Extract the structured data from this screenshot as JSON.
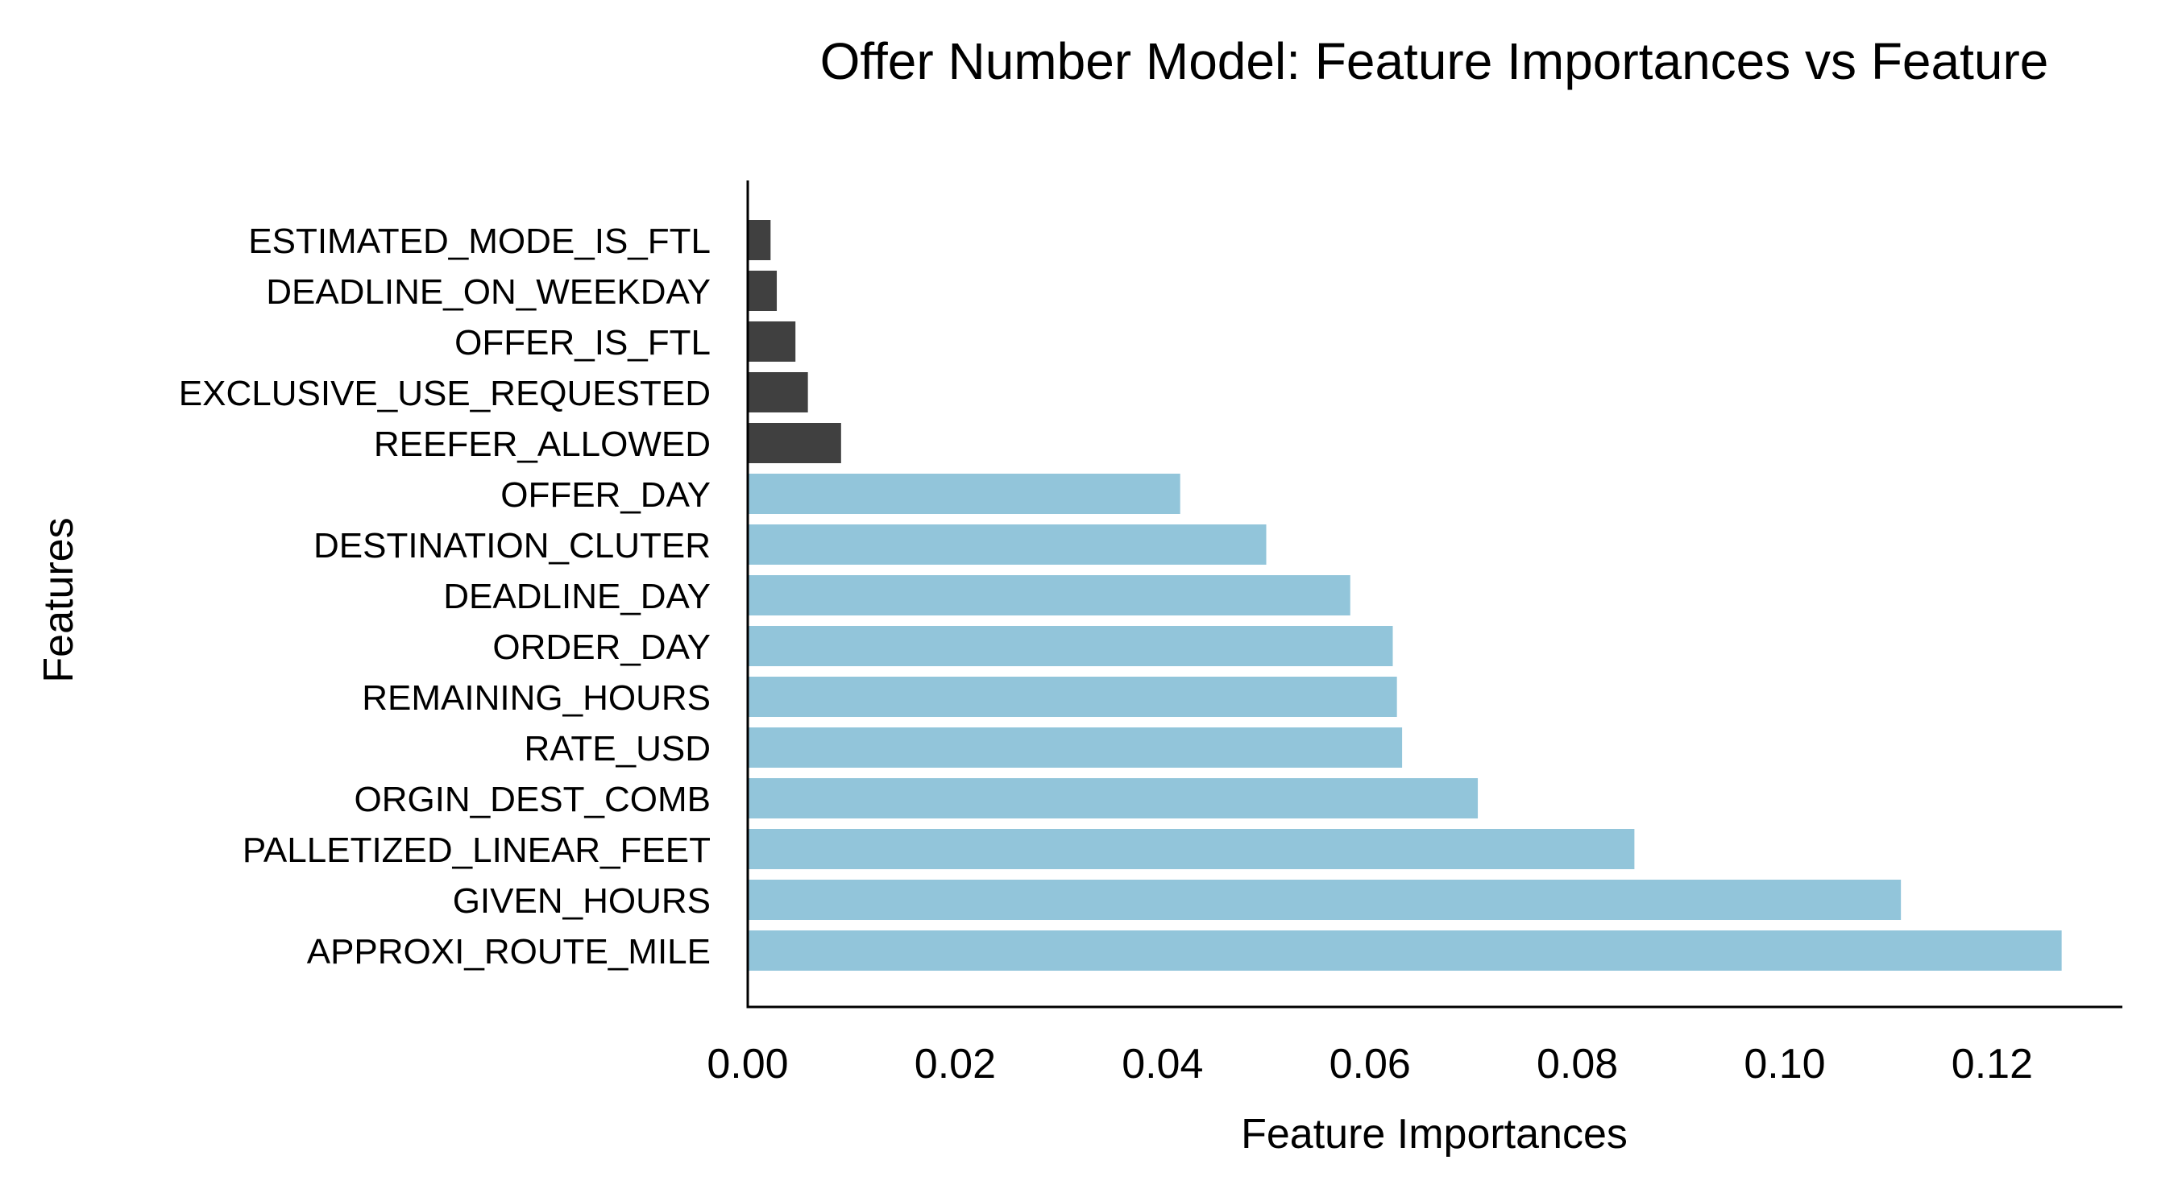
{
  "chart_data": {
    "type": "bar",
    "orientation": "horizontal",
    "title": "Offer Number Model: Feature Importances vs Feature",
    "xlabel": "Feature Importances",
    "ylabel": "Features",
    "xlim": [
      0,
      0.133
    ],
    "xticks": [
      "0.00",
      "0.02",
      "0.04",
      "0.06",
      "0.08",
      "0.10",
      "0.12"
    ],
    "xtick_values": [
      0,
      0.02,
      0.04,
      0.06,
      0.08,
      0.1,
      0.12
    ],
    "grid": false,
    "bars": [
      {
        "label": "ESTIMATED_MODE_IS_FTL",
        "value": 0.0022,
        "color": "#404040"
      },
      {
        "label": "DEADLINE_ON_WEEKDAY",
        "value": 0.0028,
        "color": "#404040"
      },
      {
        "label": "OFFER_IS_FTL",
        "value": 0.0046,
        "color": "#404040"
      },
      {
        "label": "EXCLUSIVE_USE_REQUESTED",
        "value": 0.0058,
        "color": "#404040"
      },
      {
        "label": "REEFER_ALLOWED",
        "value": 0.009,
        "color": "#404040"
      },
      {
        "label": "OFFER_DAY",
        "value": 0.0417,
        "color": "#92c5da"
      },
      {
        "label": "DESTINATION_CLUTER",
        "value": 0.05,
        "color": "#92c5da"
      },
      {
        "label": "DEADLINE_DAY",
        "value": 0.0581,
        "color": "#92c5da"
      },
      {
        "label": "ORDER_DAY",
        "value": 0.0622,
        "color": "#92c5da"
      },
      {
        "label": "REMAINING_HOURS",
        "value": 0.0626,
        "color": "#92c5da"
      },
      {
        "label": "RATE_USD",
        "value": 0.0631,
        "color": "#92c5da"
      },
      {
        "label": "ORGIN_DEST_COMB",
        "value": 0.0704,
        "color": "#92c5da"
      },
      {
        "label": "PALLETIZED_LINEAR_FEET",
        "value": 0.0855,
        "color": "#92c5da"
      },
      {
        "label": "GIVEN_HOURS",
        "value": 0.1112,
        "color": "#92c5da"
      },
      {
        "label": "APPROXI_ROUTE_MILE",
        "value": 0.1267,
        "color": "#92c5da"
      }
    ]
  }
}
